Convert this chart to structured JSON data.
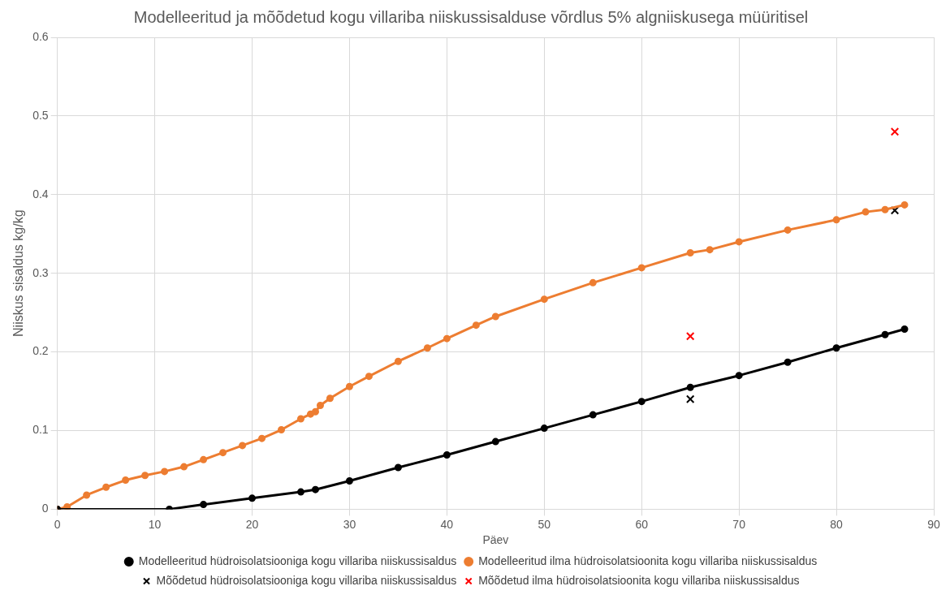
{
  "chart_data": {
    "type": "line",
    "title": "Modelleeritud ja mõõdetud kogu villariba niiskussisalduse võrdlus 5% algniiskusega müüritisel",
    "xlabel": "Päev",
    "ylabel": "Niiskus sisaldus kg/kg",
    "xlim": [
      0,
      90
    ],
    "xticks": [
      0,
      10,
      20,
      30,
      40,
      50,
      60,
      70,
      80,
      90
    ],
    "ylim": [
      0,
      0.6
    ],
    "yticks": [
      0,
      0.1,
      0.2,
      0.3,
      0.4,
      0.5,
      0.6
    ],
    "grid": true,
    "legend": "bottom",
    "series": [
      {
        "name": "Modelleeritud hüdroisolatsiooniga kogu villariba niiskussisaldus",
        "marker": "circle",
        "color": "#000000",
        "x": [
          0,
          11.5,
          15,
          20,
          25,
          26.5,
          30,
          35,
          40,
          45,
          50,
          55,
          60,
          65,
          70,
          75,
          80,
          85,
          87
        ],
        "values": [
          0,
          0,
          0.006,
          0.014,
          0.022,
          0.025,
          0.036,
          0.053,
          0.069,
          0.086,
          0.103,
          0.12,
          0.137,
          0.155,
          0.17,
          0.187,
          0.205,
          0.222,
          0.229
        ]
      },
      {
        "name": "Modelleeritud ilma hüdroisolatsioonita kogu villariba niiskussisaldus",
        "marker": "circle",
        "color": "#ed7d31",
        "x": [
          0,
          1,
          3,
          5,
          7,
          9,
          11,
          13,
          15,
          17,
          19,
          21,
          23,
          25,
          26,
          26.5,
          27,
          28,
          30,
          32,
          35,
          38,
          40,
          43,
          45,
          50,
          55,
          60,
          65,
          67,
          70,
          75,
          80,
          83,
          85,
          87
        ],
        "values": [
          0,
          0.003,
          0.018,
          0.028,
          0.037,
          0.043,
          0.048,
          0.054,
          0.063,
          0.072,
          0.081,
          0.09,
          0.101,
          0.115,
          0.121,
          0.124,
          0.132,
          0.141,
          0.156,
          0.169,
          0.188,
          0.205,
          0.217,
          0.234,
          0.245,
          0.267,
          0.288,
          0.307,
          0.326,
          0.33,
          0.34,
          0.355,
          0.368,
          0.378,
          0.381,
          0.387
        ]
      },
      {
        "name": "Mõõdetud hüdroisolatsiooniga kogu villariba niiskussisaldus",
        "type": "scatter",
        "marker": "cross",
        "color": "#000000",
        "x": [
          65,
          86
        ],
        "values": [
          0.14,
          0.38
        ]
      },
      {
        "name": "Mõõdetud ilma hüdroisolatsioonita kogu villariba niiskussisaldus",
        "type": "scatter",
        "marker": "cross",
        "color": "#ff0000",
        "x": [
          65,
          86
        ],
        "values": [
          0.22,
          0.48
        ]
      }
    ]
  }
}
